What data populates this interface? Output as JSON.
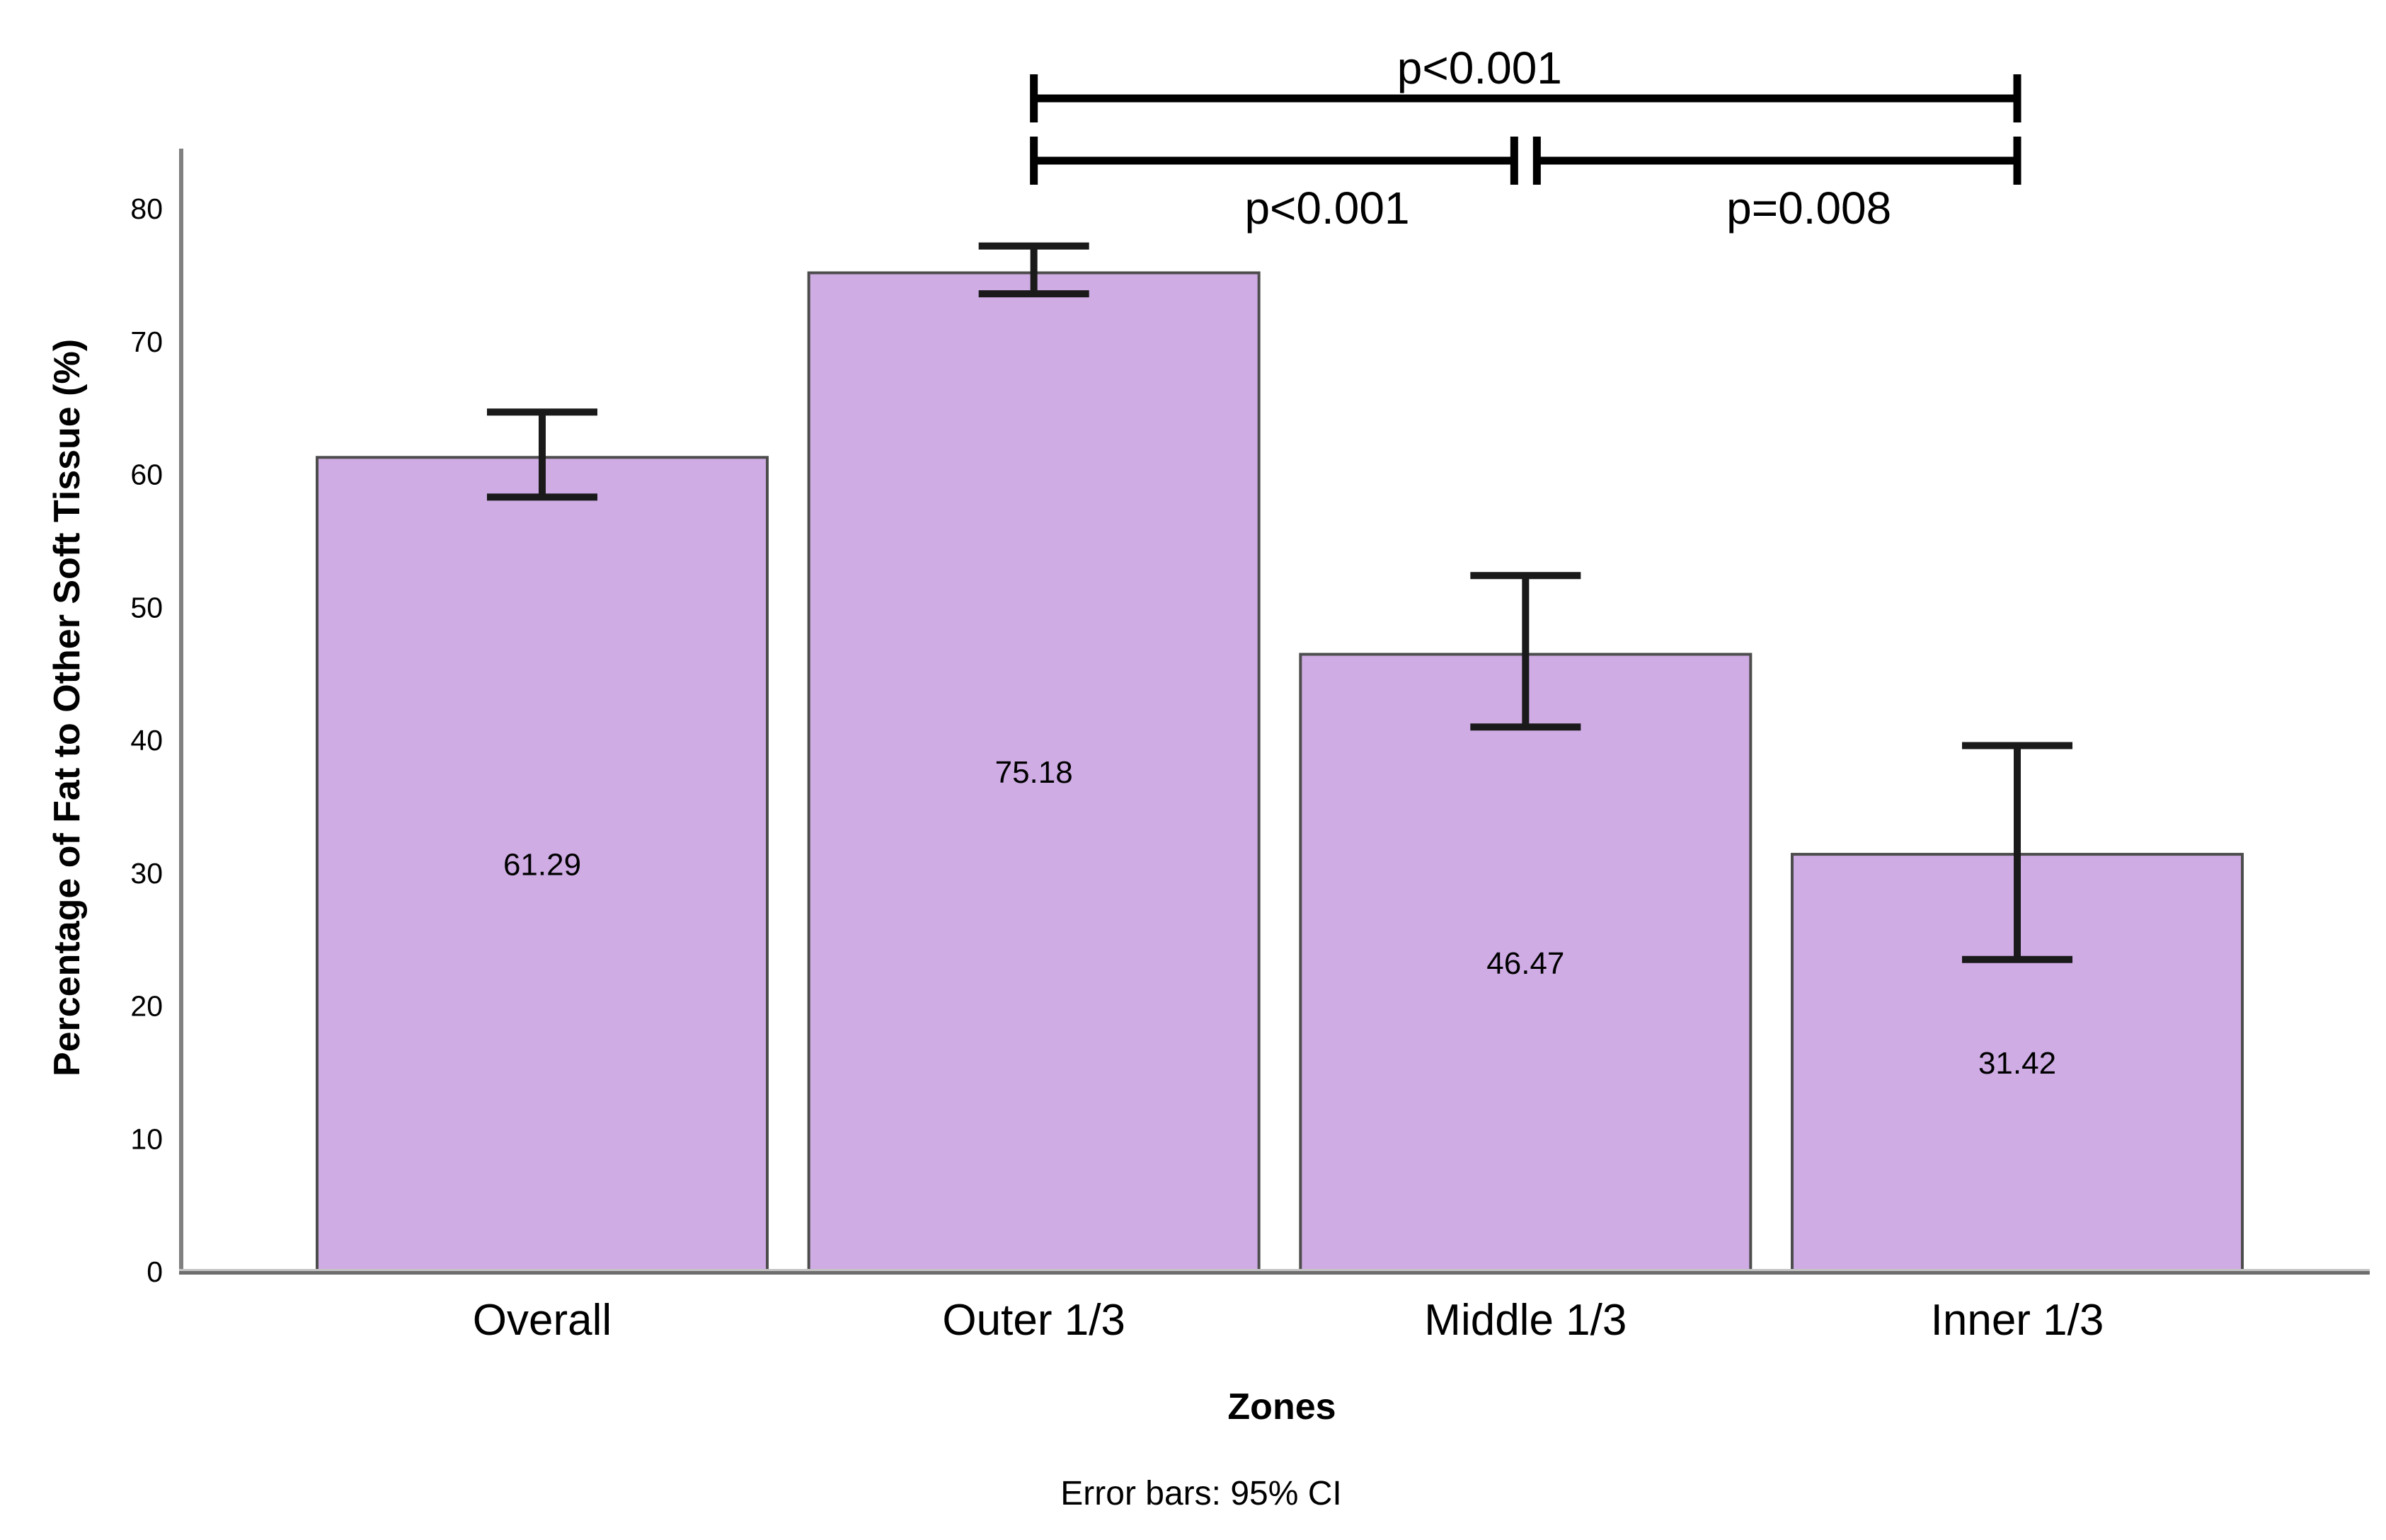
{
  "chart_data": {
    "type": "bar",
    "title": "",
    "categories": [
      "Overall",
      "Outer 1/3",
      "Middle 1/3",
      "Inner 1/3"
    ],
    "values": [
      61.29,
      75.18,
      46.47,
      31.42
    ],
    "error_bars": {
      "kind": "95% CI",
      "lower": [
        58.3,
        73.6,
        41.0,
        23.5
      ],
      "upper": [
        64.7,
        77.2,
        52.4,
        39.6
      ]
    },
    "xlabel": "Zones",
    "ylabel": "Percentage of Fat to Other Soft Tissue (%)",
    "footnote": "Error bars: 95% CI",
    "ylim": [
      0,
      85
    ],
    "yticks": [
      0,
      10,
      20,
      30,
      40,
      50,
      60,
      70,
      80
    ],
    "grid": false,
    "legend": null,
    "significance_annotations": [
      {
        "row": "top",
        "from": "Outer 1/3",
        "to": "Inner 1/3",
        "label": "p<0.001",
        "label_position": "above"
      },
      {
        "row": "bottom",
        "from": "Outer 1/3",
        "to": "Middle 1/3",
        "label": "p<0.001",
        "label_position": "below"
      },
      {
        "row": "bottom",
        "from": "Middle 1/3",
        "to": "Inner 1/3",
        "label": "p=0.008",
        "label_position": "below"
      }
    ],
    "colors": {
      "bar_fill": "#CFACE4",
      "bar_border": "#4d4d4d",
      "error_bar": "#1a1a1a",
      "bracket": "#000000",
      "axis_line_dark": "#6e6e6e",
      "axis_line_light": "#c4c4c4",
      "y_axis_line": "#808080",
      "text": "#000000",
      "background": "#ffffff"
    }
  }
}
